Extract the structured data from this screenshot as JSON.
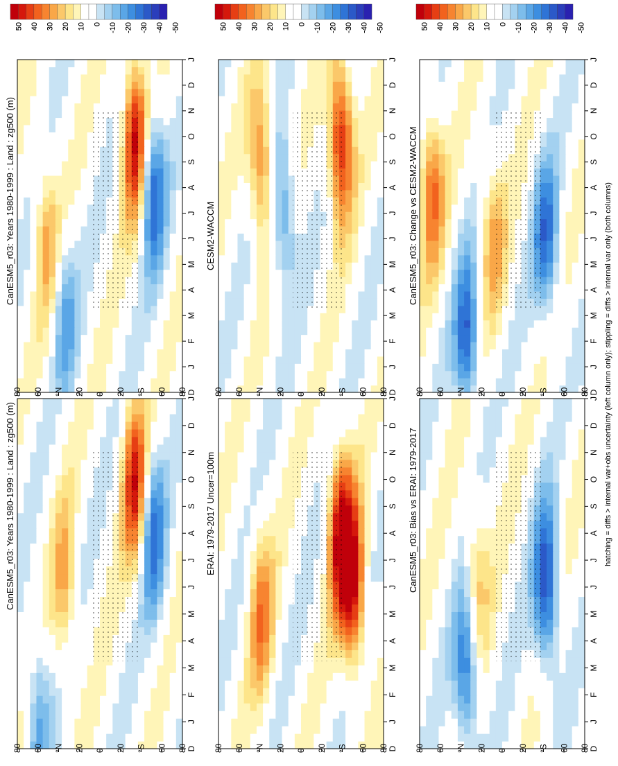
{
  "colors": {
    "positive": [
      "#fff5b8",
      "#fde58a",
      "#fbc86a",
      "#f9a748",
      "#f78430",
      "#f2621e",
      "#e63e14",
      "#d5180c",
      "#c0000a"
    ],
    "negative": [
      "#c8e3f4",
      "#a3d1f0",
      "#7dbdeb",
      "#5aa6e6",
      "#3d8ee0",
      "#2f74d6",
      "#2b59c8",
      "#2b3ebb",
      "#2a21b0"
    ],
    "hatch_dot": "#000000"
  },
  "colorbar": {
    "tick_labels": [
      "50",
      "40",
      "30",
      "20",
      "10",
      "0",
      "-10",
      "-20",
      "-30",
      "-40",
      "-50"
    ]
  },
  "axis": {
    "month_labels": [
      "D",
      "J",
      "F",
      "M",
      "A",
      "M",
      "J",
      "J",
      "A",
      "S",
      "O",
      "N",
      "D",
      "J"
    ],
    "lat_labels": [
      "80",
      "60",
      "°N",
      "20",
      "0",
      "20",
      "°S",
      "60",
      "80"
    ]
  },
  "footer": "hatching = diffs > internal var+obs uncertainty (left column only); stippling = diffs > internal var only (both columns)",
  "chart_data": [
    {
      "type": "heatmap",
      "title": "CanESM5_r03: Years 1980-1999 : Land : zg500 (m)",
      "x": "month (D-J)",
      "y": "latitude",
      "zlim": [
        -50,
        50
      ],
      "features": [
        {
          "lat": 40,
          "month": 6,
          "value": 20
        },
        {
          "lat": -40,
          "month": 10,
          "value": 40
        },
        {
          "lat": -60,
          "month": 8,
          "value": -30
        },
        {
          "lat": 70,
          "month": 1,
          "value": -20
        }
      ]
    },
    {
      "type": "heatmap",
      "title": "CanESM5_r03: Years 1980-1999 : Land : zg500 (m)",
      "x": "month (D-J)",
      "y": "latitude",
      "zlim": [
        -50,
        50
      ],
      "features": [
        {
          "lat": 60,
          "month": 6,
          "value": 20
        },
        {
          "lat": -40,
          "month": 10,
          "value": 45
        },
        {
          "lat": -60,
          "month": 8,
          "value": -35
        },
        {
          "lat": 40,
          "month": 3,
          "value": -20
        }
      ]
    },
    {
      "type": "heatmap",
      "title": "ERAI: 1979-2017 Uncer=100m",
      "x": "month (D-J)",
      "y": "latitude",
      "zlim": [
        -50,
        50
      ],
      "features": [
        {
          "lat": 45,
          "month": 5,
          "value": 25
        },
        {
          "lat": -45,
          "month": 8,
          "value": 45
        },
        {
          "lat": -60,
          "month": 6,
          "value": 40
        }
      ]
    },
    {
      "type": "heatmap",
      "title": "CESM2-WACCM",
      "x": "month (D-J)",
      "y": "latitude",
      "zlim": [
        -50,
        50
      ],
      "features": [
        {
          "lat": 45,
          "month": 9,
          "value": 30
        },
        {
          "lat": -45,
          "month": 10,
          "value": 45
        },
        {
          "lat": 20,
          "month": 7,
          "value": -25
        }
      ]
    },
    {
      "type": "heatmap",
      "title": "CanESM5_r03: Bias vs ERAI: 1979-2017",
      "x": "month (D-J)",
      "y": "latitude",
      "zlim": [
        -50,
        50
      ],
      "features": [
        {
          "lat": 40,
          "month": 3,
          "value": -35
        },
        {
          "lat": -50,
          "month": 6,
          "value": -40
        },
        {
          "lat": 30,
          "month": 6,
          "value": 20
        }
      ]
    },
    {
      "type": "heatmap",
      "title": "CanESM5_r03: Change vs CESM2-WACCM",
      "x": "month (D-J)",
      "y": "latitude",
      "zlim": [
        -50,
        50
      ],
      "features": [
        {
          "lat": 40,
          "month": 2,
          "value": -35
        },
        {
          "lat": 10,
          "month": 6,
          "value": 20
        },
        {
          "lat": -50,
          "month": 6,
          "value": -30
        },
        {
          "lat": 80,
          "month": 8,
          "value": 30
        }
      ]
    }
  ]
}
